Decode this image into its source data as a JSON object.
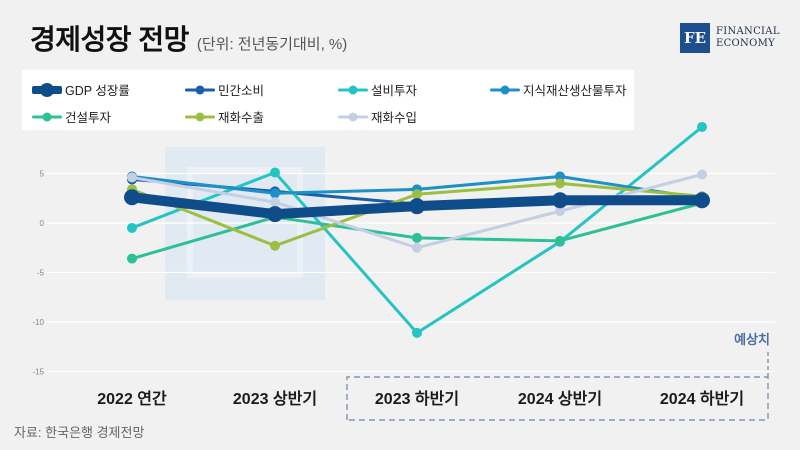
{
  "header": {
    "title": "경제성장 전망",
    "unit": "(단위: 전년동기대비, %)"
  },
  "logo": {
    "mark": "FE",
    "line1": "FINANCIAL",
    "line2": "ECONOMY"
  },
  "source": "자료: 한국은행 경제전망",
  "chart_data": {
    "type": "line",
    "categories": [
      "2022 연간",
      "2023 상반기",
      "2023 하반기",
      "2024 상반기",
      "2024 하반기"
    ],
    "ylim": [
      -15,
      10
    ],
    "yticks": [
      5,
      0,
      -5,
      -10,
      -15
    ],
    "grid": true,
    "legend_position": "top-left",
    "forecast_label": "예상치",
    "forecast_from_category": "2023 하반기",
    "series": [
      {
        "name": "GDP 성장률",
        "color": "#0f4c8a",
        "values": [
          2.6,
          0.9,
          1.7,
          2.3,
          2.3
        ],
        "bold": true
      },
      {
        "name": "민간소비",
        "color": "#1a5ea8",
        "values": [
          4.4,
          3.2,
          1.9,
          2.4,
          2.3
        ],
        "bold": false
      },
      {
        "name": "설비투자",
        "color": "#25c4c4",
        "values": [
          -0.5,
          5.1,
          -11.1,
          -1.9,
          9.7
        ],
        "bold": false
      },
      {
        "name": "지식재산생산물투자",
        "color": "#1e90c8",
        "values": [
          4.7,
          3.0,
          3.4,
          4.7,
          2.5
        ],
        "bold": false
      },
      {
        "name": "건설투자",
        "color": "#2cc096",
        "values": [
          -3.6,
          0.6,
          -1.5,
          -1.8,
          2.0
        ],
        "bold": false
      },
      {
        "name": "재화수출",
        "color": "#9bbf42",
        "values": [
          3.4,
          -2.3,
          2.9,
          4.0,
          2.7
        ],
        "bold": false
      },
      {
        "name": "재화수입",
        "color": "#c5cfe3",
        "values": [
          4.6,
          2.1,
          -2.5,
          1.2,
          4.9
        ],
        "bold": false
      }
    ]
  }
}
